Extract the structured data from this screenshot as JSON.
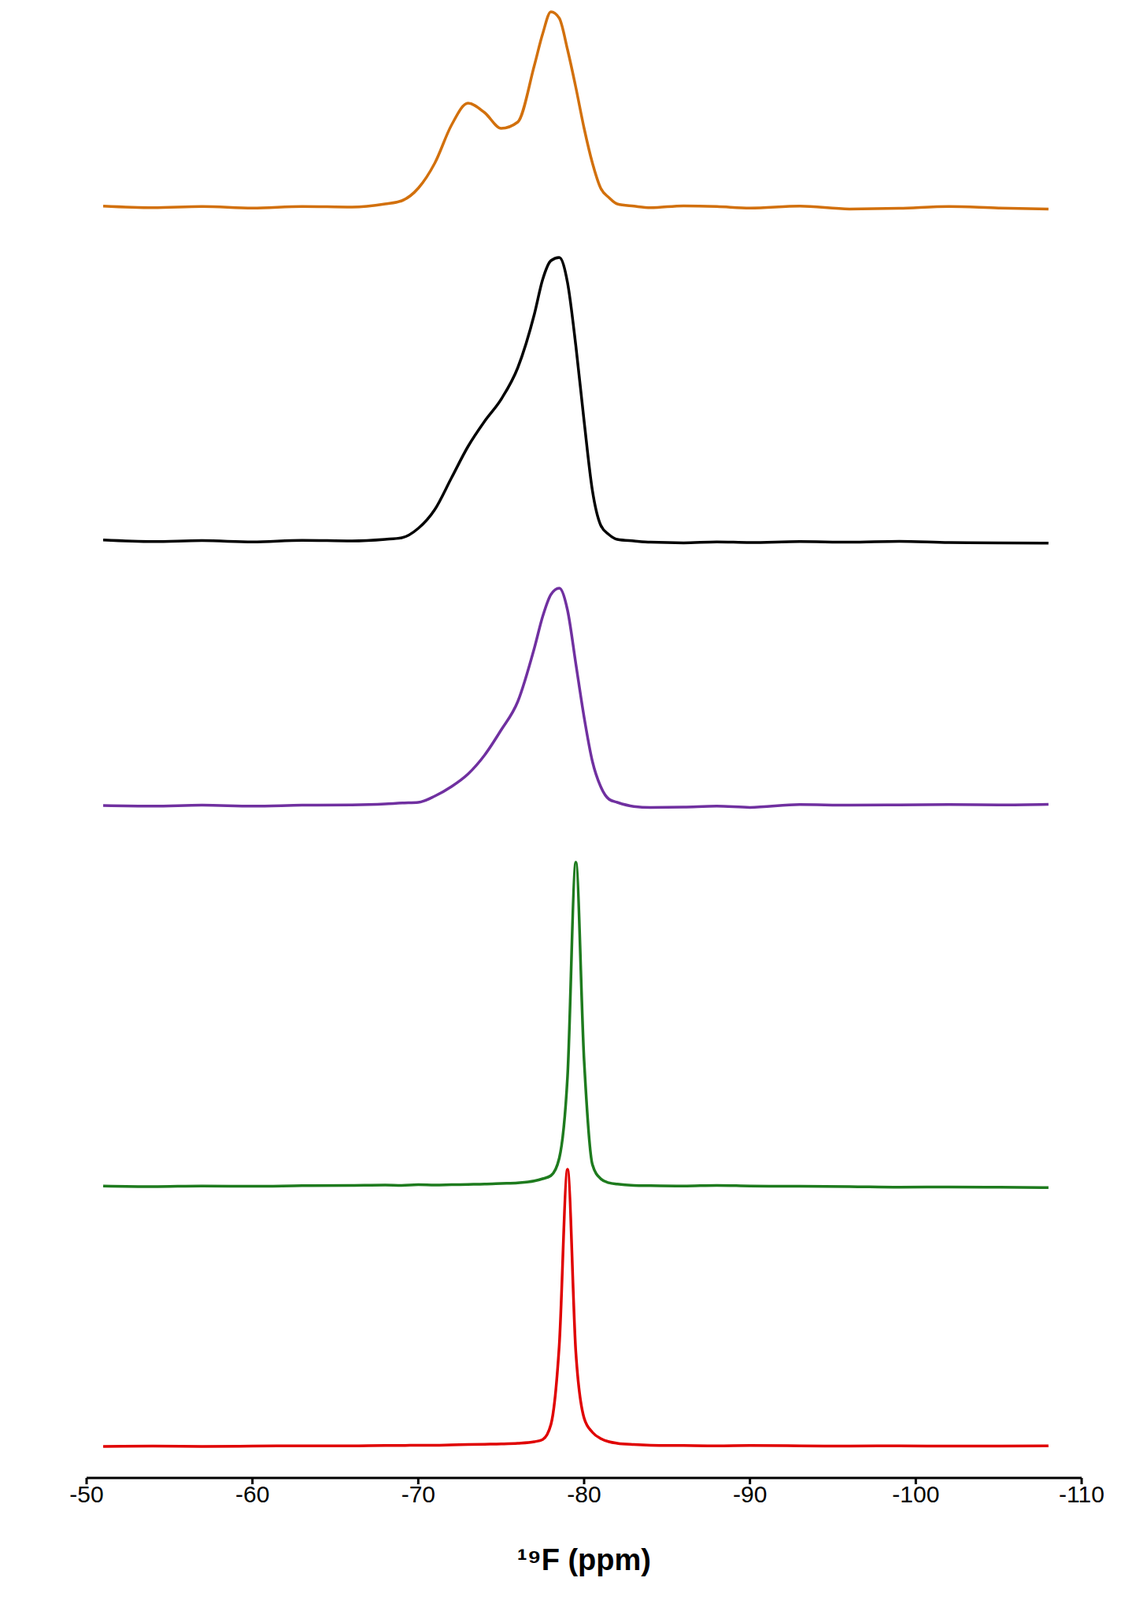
{
  "chart_data": {
    "type": "line",
    "xlabel": "¹⁹F (ppm)",
    "xlim": [
      -50,
      -110
    ],
    "xticks": [
      -50,
      -60,
      -70,
      -80,
      -90,
      -100,
      -110
    ],
    "ylim": [
      -0.1,
      1.1
    ],
    "tick_labels": "x",
    "grid": false,
    "x": [
      -51,
      -54,
      -57,
      -60,
      -63,
      -66,
      -68,
      -69,
      -70,
      -71,
      -72,
      -73,
      -74,
      -75,
      -76,
      -77,
      -77.5,
      -78,
      -78.5,
      -79,
      -79.5,
      -80,
      -80.5,
      -81,
      -81.5,
      -82,
      -83,
      -84,
      -86,
      -88,
      -90,
      -93,
      -96,
      -99,
      -102,
      -105,
      -108
    ],
    "series": [
      {
        "color": "#d2700c",
        "values": [
          0.003,
          -0.002,
          0.002,
          -0.003,
          0.002,
          0,
          0.01,
          0.02,
          0.06,
          0.14,
          0.26,
          0.33,
          0.3,
          0.25,
          0.27,
          0.45,
          0.55,
          0.62,
          0.6,
          0.5,
          0.38,
          0.25,
          0.14,
          0.06,
          0.03,
          0.01,
          0.003,
          -0.002,
          0.004,
          0.002,
          -0.003,
          0.003,
          -0.006,
          -0.004,
          0.002,
          -0.003,
          -0.006
        ]
      },
      {
        "color": "#000000",
        "values": [
          0.003,
          -0.002,
          0.001,
          -0.003,
          0.002,
          0,
          0.005,
          0.01,
          0.04,
          0.1,
          0.2,
          0.3,
          0.38,
          0.45,
          0.55,
          0.72,
          0.83,
          0.89,
          0.9,
          0.82,
          0.62,
          0.38,
          0.16,
          0.05,
          0.02,
          0.005,
          0,
          -0.004,
          -0.006,
          -0.003,
          -0.005,
          -0.002,
          -0.004,
          -0.001,
          -0.005,
          -0.006,
          -0.007
        ]
      },
      {
        "color": "#7030a0",
        "values": [
          0,
          -0.002,
          0.001,
          -0.002,
          0.001,
          0.002,
          0.005,
          0.008,
          0.01,
          0.03,
          0.06,
          0.1,
          0.16,
          0.24,
          0.33,
          0.5,
          0.6,
          0.67,
          0.69,
          0.62,
          0.45,
          0.28,
          0.14,
          0.06,
          0.02,
          0.01,
          -0.003,
          -0.006,
          -0.005,
          -0.002,
          -0.006,
          0.003,
          0.001,
          0.002,
          0.003,
          0.002,
          0.004
        ]
      },
      {
        "color": "#1e7b1e",
        "values": [
          0.002,
          0,
          0.002,
          0.001,
          0.003,
          0.004,
          0.005,
          0.004,
          0.006,
          0.005,
          0.006,
          0.007,
          0.008,
          0.01,
          0.012,
          0.018,
          0.025,
          0.035,
          0.09,
          0.35,
          1.03,
          0.4,
          0.07,
          0.025,
          0.012,
          0.008,
          0.004,
          0.003,
          0.002,
          0.004,
          0.002,
          0.001,
          0,
          -0.002,
          -0.001,
          -0.002,
          -0.003
        ]
      },
      {
        "color": "#e00000",
        "values": [
          0,
          0.001,
          0,
          0.001,
          0.002,
          0.002,
          0.003,
          0.003,
          0.004,
          0.004,
          0.005,
          0.006,
          0.007,
          0.008,
          0.01,
          0.015,
          0.022,
          0.07,
          0.32,
          0.88,
          0.3,
          0.09,
          0.045,
          0.025,
          0.015,
          0.01,
          0.006,
          0.004,
          0.003,
          0.002,
          0.003,
          0.002,
          0.001,
          0.002,
          0.001,
          0.001,
          0.002
        ]
      }
    ]
  }
}
